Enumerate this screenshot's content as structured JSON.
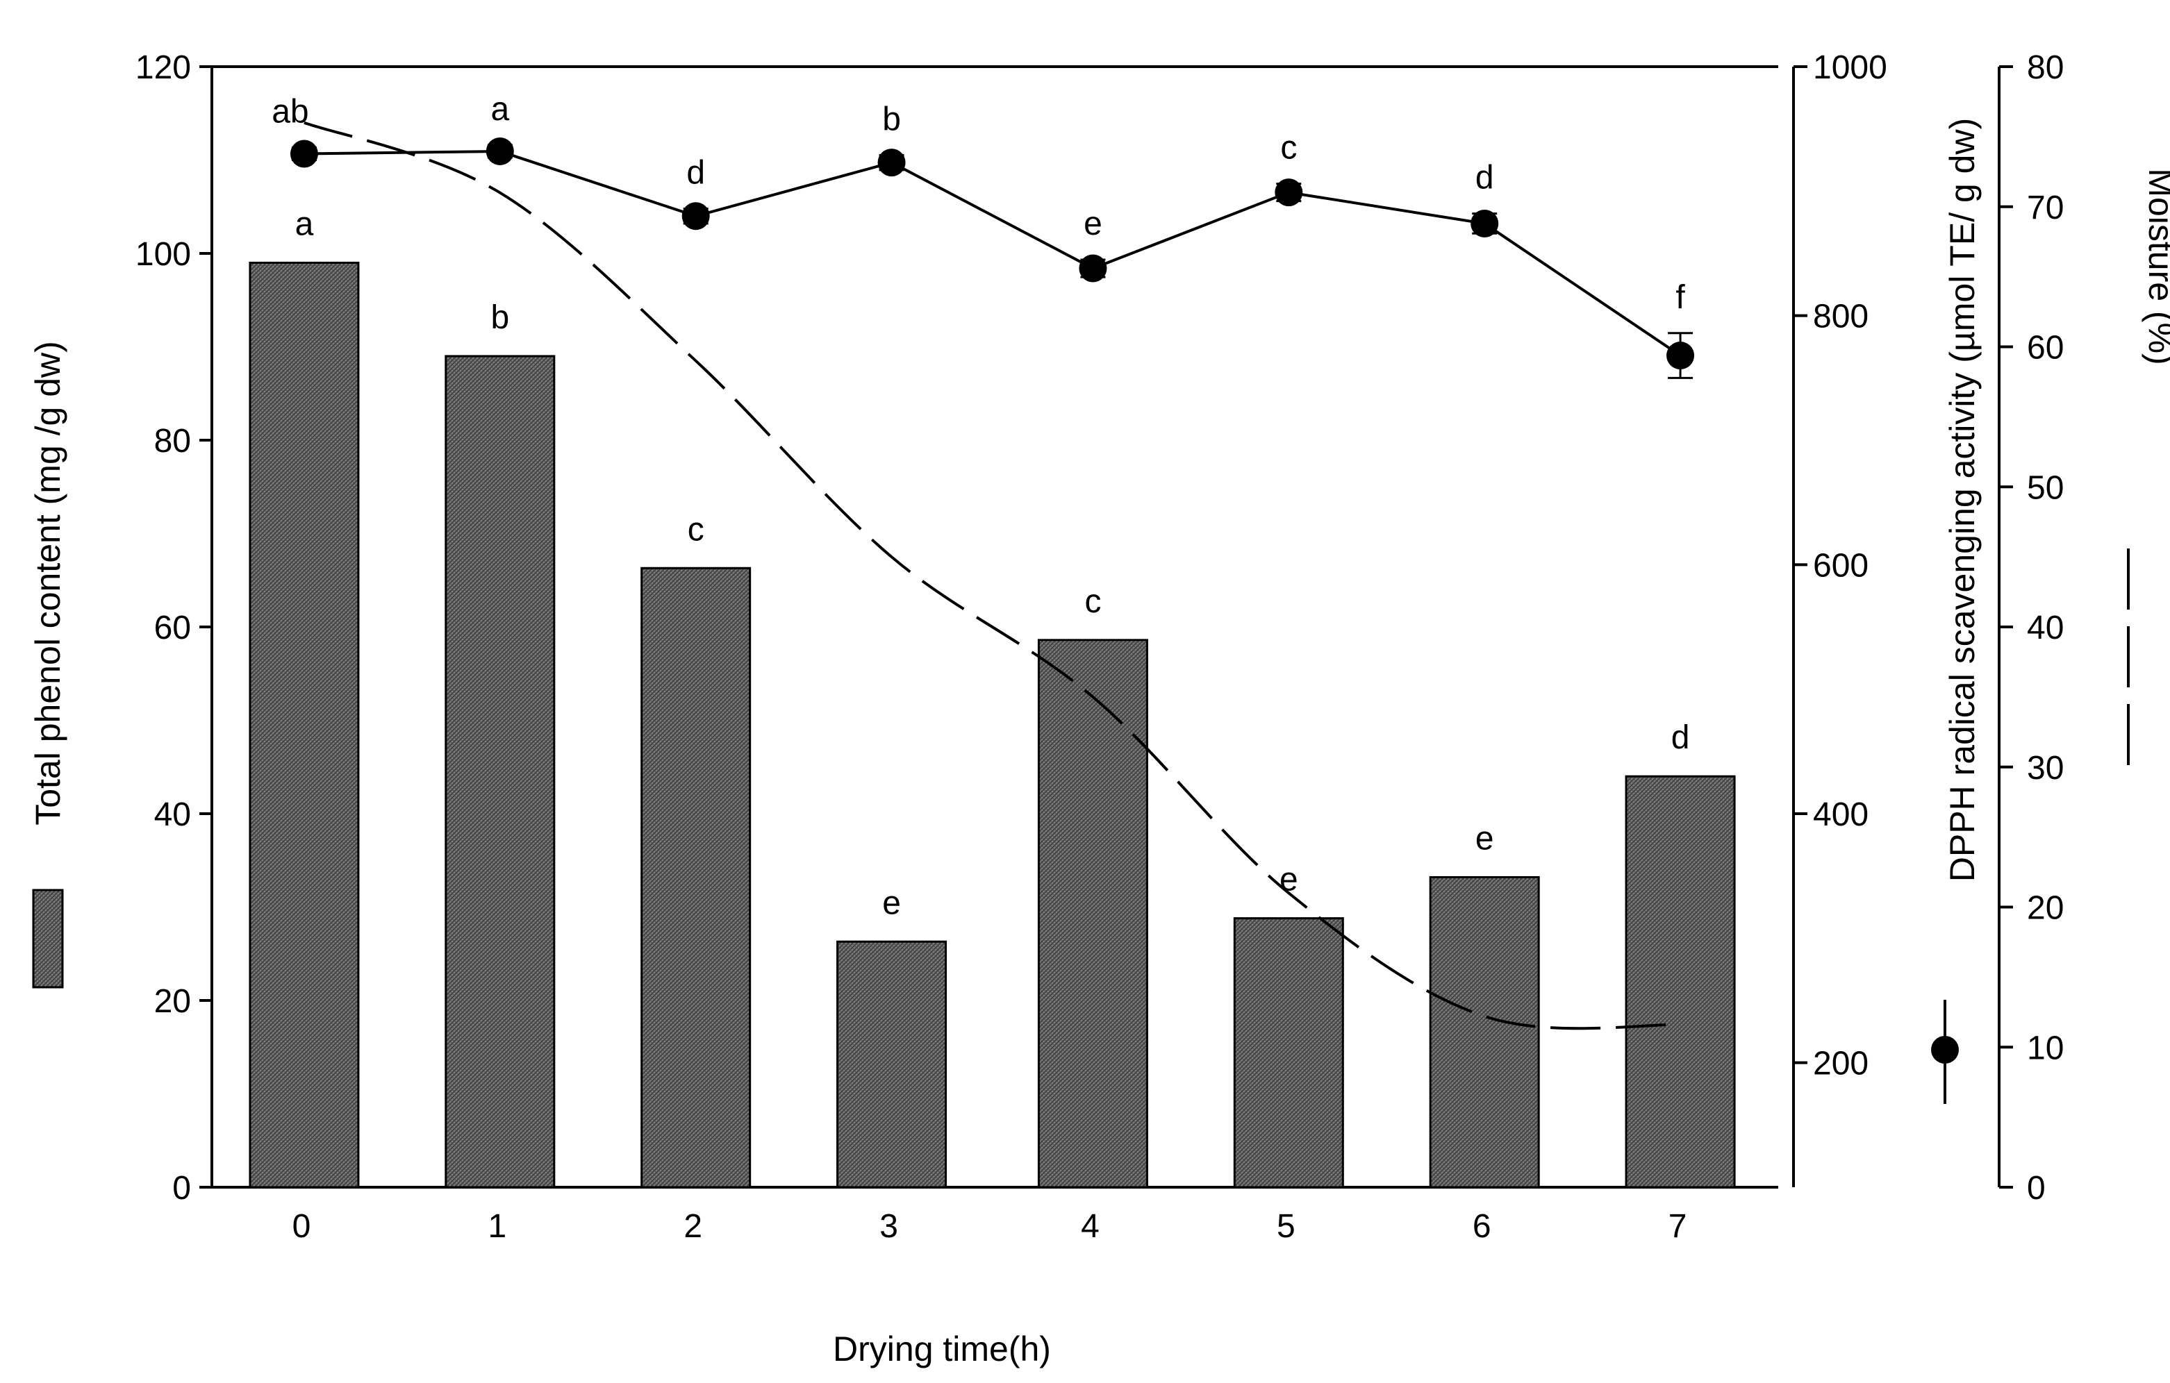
{
  "chart_data": {
    "type": "bar",
    "categories": [
      "0",
      "1",
      "2",
      "3",
      "4",
      "5",
      "6",
      "7"
    ],
    "xlabel": "Drying time(h)",
    "series": [
      {
        "name": "Total phenol content",
        "kind": "bar",
        "axis": "left",
        "values": [
          99,
          89,
          66.3,
          26.3,
          58.6,
          28.8,
          33.2,
          44
        ],
        "letters": [
          "a",
          "b",
          "c",
          "e",
          "c",
          "e",
          "e",
          "d"
        ]
      },
      {
        "name": "DPPH radical scavenging activity",
        "kind": "line-marker",
        "axis": "right1",
        "values": [
          930,
          932,
          880,
          923,
          838,
          899,
          874,
          768
        ],
        "errors": [
          5,
          5,
          6,
          6,
          7,
          7,
          8,
          18
        ],
        "letters": [
          "ab",
          "a",
          "d",
          "b",
          "e",
          "c",
          "d",
          "f"
        ]
      },
      {
        "name": "Moisture",
        "kind": "dashed-line",
        "axis": "right2",
        "values": [
          76,
          71,
          59,
          45,
          35,
          21,
          12.2,
          11.6
        ]
      }
    ],
    "axes": {
      "left": {
        "label": "Total phenol content (mg /g dw)",
        "ylim": [
          0,
          120
        ],
        "ticks": [
          "0",
          "20",
          "40",
          "60",
          "80",
          "100",
          "120"
        ]
      },
      "right1": {
        "label": "DPPH radical scavenging activity  (µmol TE/ g dw)",
        "ylim": [
          100,
          1000
        ],
        "ticks": [
          "200",
          "400",
          "600",
          "800",
          "1000"
        ]
      },
      "right2": {
        "label": "Moisture (%)",
        "ylim": [
          0,
          80
        ],
        "ticks": [
          "0",
          "10",
          "20",
          "30",
          "40",
          "50",
          "60",
          "70",
          "80"
        ]
      }
    },
    "legend": "along the axis titles",
    "grid": false
  }
}
